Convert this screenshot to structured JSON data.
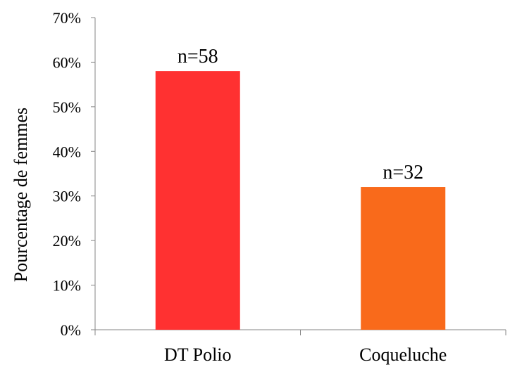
{
  "chart_data": {
    "type": "bar",
    "title": "",
    "xlabel": "",
    "ylabel": "Pourcentage de femmes",
    "categories": [
      "DT Polio",
      "Coqueluche"
    ],
    "values": [
      0.58,
      0.32
    ],
    "data_labels": [
      "n=58",
      "n=32"
    ],
    "colors": [
      "#ff3131",
      "#f96a1b"
    ],
    "ylim": [
      0,
      0.7
    ],
    "y_ticks": [
      0,
      0.1,
      0.2,
      0.3,
      0.4,
      0.5,
      0.6,
      0.7
    ],
    "y_tick_labels": [
      "0%",
      "10%",
      "20%",
      "30%",
      "40%",
      "50%",
      "60%",
      "70%"
    ],
    "grid": false,
    "legend": "none",
    "axis_color": "#868686"
  }
}
